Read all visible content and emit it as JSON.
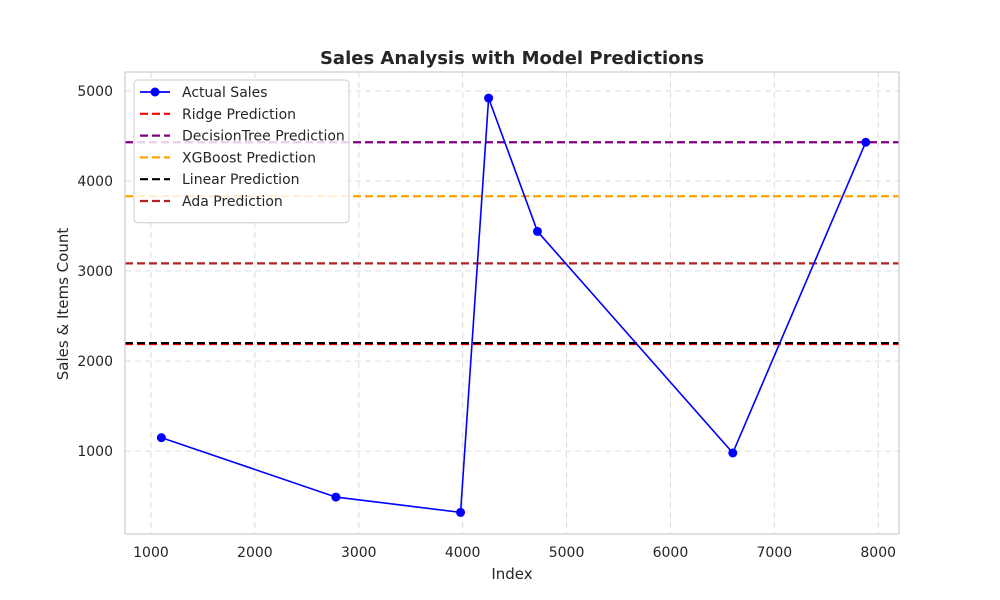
{
  "chart_data": {
    "type": "line",
    "title": "Sales Analysis with Model Predictions",
    "xlabel": "Index",
    "ylabel": "Sales & Items Count",
    "xlim": [
      750,
      8200
    ],
    "ylim": [
      80,
      5210
    ],
    "xticks": [
      1000,
      2000,
      3000,
      4000,
      5000,
      6000,
      7000,
      8000
    ],
    "yticks": [
      1000,
      2000,
      3000,
      4000,
      5000
    ],
    "grid": true,
    "legend_position": "top-left",
    "series": [
      {
        "name": "Actual Sales",
        "kind": "line-marker",
        "color": "#0000ff",
        "x": [
          1100,
          2780,
          3980,
          4250,
          4720,
          6600,
          7880
        ],
        "y": [
          1150,
          490,
          320,
          4920,
          3440,
          980,
          4430
        ]
      }
    ],
    "hlines": [
      {
        "name": "Ridge Prediction",
        "color": "#ff0000",
        "y": 2190
      },
      {
        "name": "DecisionTree Prediction",
        "color": "#800080",
        "y": 4430
      },
      {
        "name": "XGBoost Prediction",
        "color": "#ffa500",
        "y": 3830
      },
      {
        "name": "Linear Prediction",
        "color": "#000000",
        "y": 2200
      },
      {
        "name": "Ada Prediction",
        "color": "#b22222",
        "y": 3085
      }
    ]
  }
}
